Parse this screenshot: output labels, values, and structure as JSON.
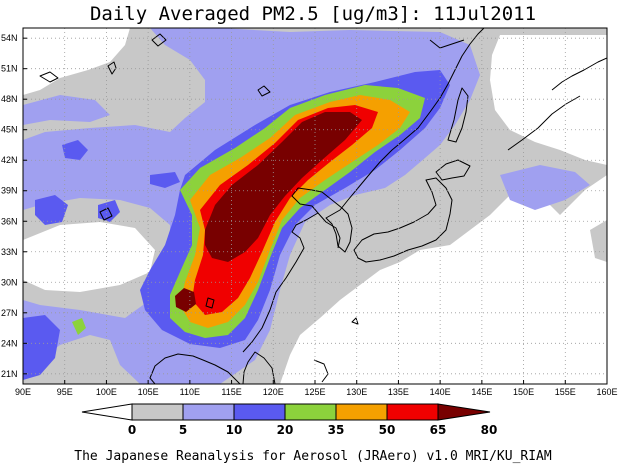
{
  "title": "Daily Averaged PM2.5 [ug/m3]: 11Jul2011",
  "footer": "The Japanese Reanalysis for Aerosol (JRAero) v1.0 MRI/KU_RIAM",
  "map": {
    "lon_range": [
      90,
      160
    ],
    "lat_range": [
      20,
      55
    ],
    "x_ticks": [
      "90E",
      "95E",
      "100E",
      "105E",
      "110E",
      "115E",
      "120E",
      "125E",
      "130E",
      "135E",
      "140E",
      "145E",
      "150E",
      "155E",
      "160E"
    ],
    "y_ticks": [
      "21N",
      "24N",
      "27N",
      "30N",
      "33N",
      "36N",
      "39N",
      "42N",
      "45N",
      "48N",
      "51N",
      "54N"
    ]
  },
  "colorbar": {
    "labels": [
      "0",
      "5",
      "10",
      "20",
      "35",
      "50",
      "65",
      "80"
    ],
    "colors": [
      "#ffffff",
      "#c8c8c8",
      "#a0a0f0",
      "#5a5af0",
      "#8cd23c",
      "#f5a000",
      "#f00000",
      "#780000"
    ]
  }
}
